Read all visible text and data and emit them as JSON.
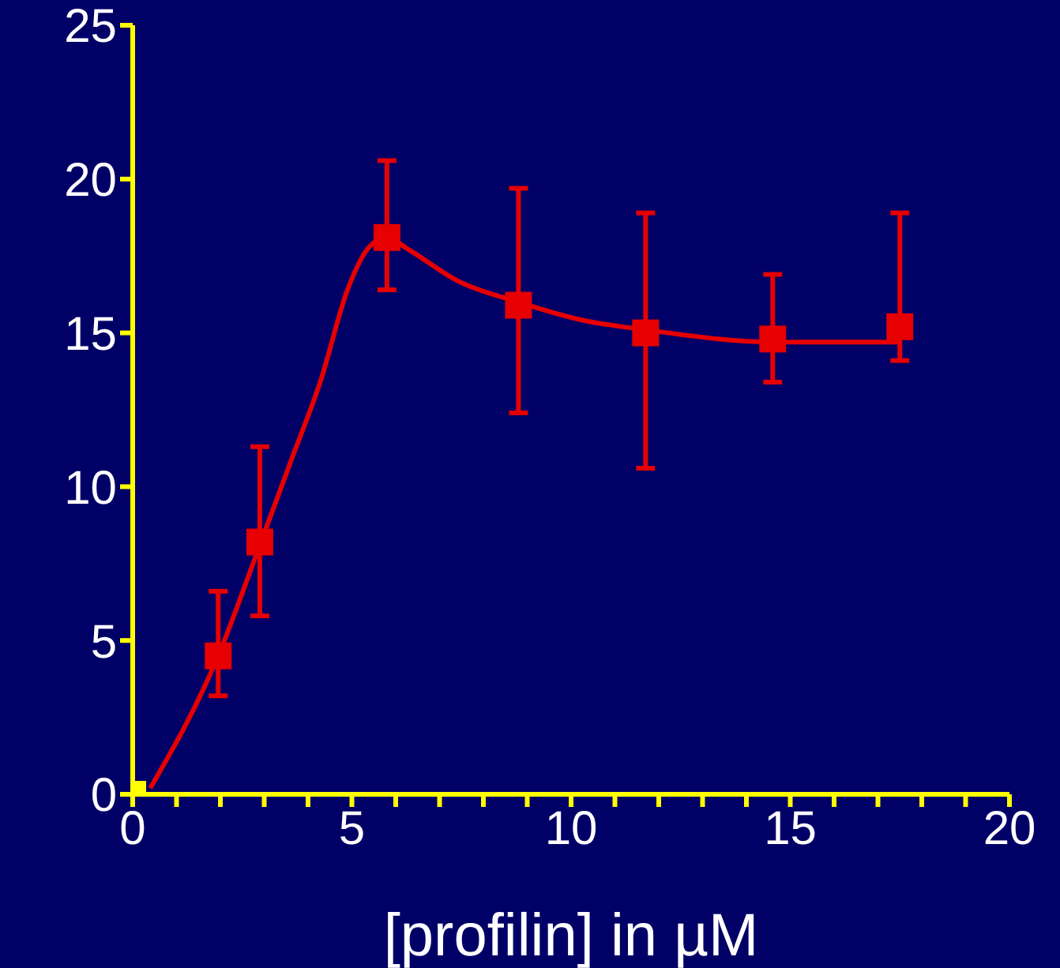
{
  "chart_data": {
    "type": "scatter",
    "xlabel": "[profilin] in µM",
    "xlim": [
      0,
      20
    ],
    "ylim": [
      0,
      25
    ],
    "xticks": [
      0,
      {
        "value": 1,
        "label": null
      },
      {
        "value": 2,
        "label": null
      },
      {
        "value": 3,
        "label": null
      },
      {
        "value": 4,
        "label": null
      },
      5,
      {
        "value": 6,
        "label": null
      },
      {
        "value": 7,
        "label": null
      },
      {
        "value": 8,
        "label": null
      },
      {
        "value": 9,
        "label": null
      },
      10,
      {
        "value": 11,
        "label": null
      },
      {
        "value": 12,
        "label": null
      },
      {
        "value": 13,
        "label": null
      },
      {
        "value": 14,
        "label": null
      },
      15,
      {
        "value": 16,
        "label": null
      },
      {
        "value": 17,
        "label": null
      },
      {
        "value": 18,
        "label": null
      },
      {
        "value": 19,
        "label": null
      },
      20
    ],
    "yticks": [
      0,
      5,
      10,
      15,
      20,
      25
    ],
    "grid": false,
    "legend": false,
    "marker": "square",
    "series": [
      {
        "color": "#e60000",
        "colors": [
          "#ffff00",
          "#e60000",
          "#e60000",
          "#e60000",
          "#e60000",
          "#e60000",
          "#e60000",
          "#e60000"
        ],
        "x": [
          0,
          1.95,
          2.9,
          5.8,
          8.8,
          11.7,
          14.6,
          17.5
        ],
        "values": [
          0,
          4.5,
          8.2,
          18.1,
          15.9,
          15.0,
          14.8,
          15.2
        ],
        "errors": [
          null,
          [
            3.2,
            6.6
          ],
          [
            5.8,
            11.3
          ],
          [
            16.4,
            20.6
          ],
          [
            12.4,
            19.7
          ],
          [
            10.6,
            18.9
          ],
          [
            13.4,
            16.9
          ],
          [
            14.1,
            18.9
          ]
        ]
      },
      {
        "type": "line",
        "color": "#e60000",
        "marker": "none",
        "x": [
          0.4,
          1.95,
          2.9,
          3.6,
          4.3,
          4.9,
          5.4,
          5.8,
          6.3,
          7.4,
          8.8,
          10.3,
          11.7,
          14.6,
          17.5
        ],
        "values": [
          0.2,
          4.5,
          8.1,
          10.8,
          13.5,
          16.4,
          17.8,
          18.1,
          17.7,
          16.7,
          16.0,
          15.4,
          15.1,
          14.7,
          14.7
        ]
      }
    ]
  }
}
